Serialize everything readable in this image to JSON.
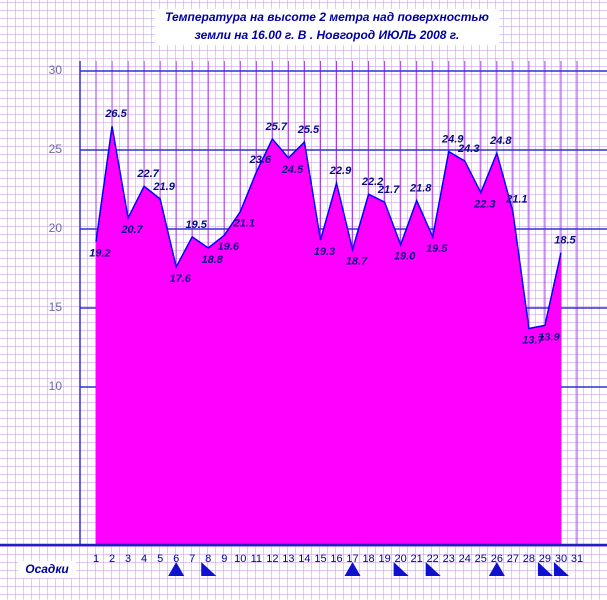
{
  "chart_data": {
    "type": "area",
    "title": "Температура на высоте 2 метра над поверхностью",
    "subtitle": "земли на 16.00 г. В . Новгород ИЮЛЬ 2008 г.",
    "x": [
      1,
      2,
      3,
      4,
      5,
      6,
      7,
      8,
      9,
      10,
      11,
      12,
      13,
      14,
      15,
      16,
      17,
      18,
      19,
      20,
      21,
      22,
      23,
      24,
      25,
      26,
      27,
      28,
      29,
      30
    ],
    "series": [
      {
        "color": "#ff00ff",
        "values": [
          19.2,
          26.5,
          20.7,
          22.7,
          21.9,
          17.6,
          19.5,
          18.8,
          19.6,
          21.1,
          23.6,
          25.7,
          24.5,
          25.5,
          19.3,
          22.9,
          18.7,
          22.2,
          21.7,
          19.0,
          21.8,
          19.5,
          24.9,
          24.3,
          22.3,
          24.8,
          21.1,
          13.7,
          13.9,
          18.5
        ],
        "value_labels": [
          "19.2",
          "26.5",
          "20.7",
          "22.7",
          "21.9",
          "17.6",
          "19.5",
          "18.8",
          "19.6",
          "21.1",
          "23.6",
          "25.7",
          "24.5",
          "25.5",
          "19.3",
          "22.9",
          "18.7",
          "22.2",
          "21.7",
          "19.0",
          "21.8",
          "19.5",
          "24.9",
          "24.3",
          "22.3",
          "24.8",
          "21.1",
          "13.7",
          "13.9",
          "18.5"
        ]
      }
    ],
    "xlim": [
      1,
      31
    ],
    "xticks": [
      1,
      2,
      3,
      4,
      5,
      6,
      7,
      8,
      9,
      10,
      11,
      12,
      13,
      14,
      15,
      16,
      17,
      18,
      19,
      20,
      21,
      22,
      23,
      24,
      25,
      26,
      27,
      28,
      29,
      30,
      31
    ],
    "ylim": [
      0,
      30
    ],
    "yticks": [
      10,
      15,
      20,
      25,
      30
    ],
    "grid": true,
    "precipitation": {
      "label": "Осадки",
      "heavy_days": [
        6,
        17,
        26
      ],
      "light_days": [
        8,
        20,
        22,
        29,
        30
      ]
    }
  }
}
